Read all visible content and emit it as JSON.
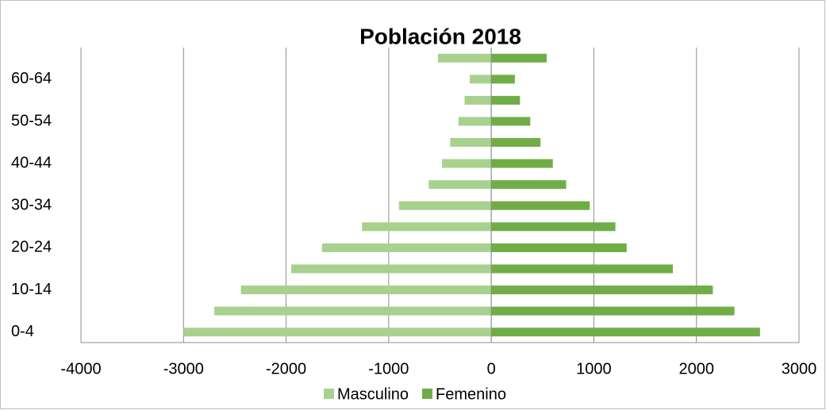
{
  "chart_data": {
    "type": "bar",
    "orientation": "horizontal",
    "stacked": true,
    "title": "Población 2018",
    "categories": [
      "0-4",
      null,
      "10-14",
      null,
      "20-24",
      null,
      "30-34",
      null,
      "40-44",
      null,
      "50-54",
      null,
      "60-64",
      null
    ],
    "series": [
      {
        "name": "Masculino",
        "color": "#a9d18e",
        "values": [
          -3000,
          -2700,
          -2440,
          -1950,
          -1650,
          -1260,
          -900,
          -610,
          -480,
          -400,
          -320,
          -260,
          -210,
          -520
        ]
      },
      {
        "name": "Femenino",
        "color": "#70ad47",
        "values": [
          2620,
          2370,
          2160,
          1770,
          1320,
          1210,
          960,
          730,
          600,
          480,
          380,
          280,
          230,
          540
        ]
      }
    ],
    "xlim": [
      -4000,
      3000
    ],
    "xticks": [
      -4000,
      -3000,
      -2000,
      -1000,
      0,
      1000,
      2000,
      3000
    ],
    "grid": true,
    "legend": "bottom"
  }
}
